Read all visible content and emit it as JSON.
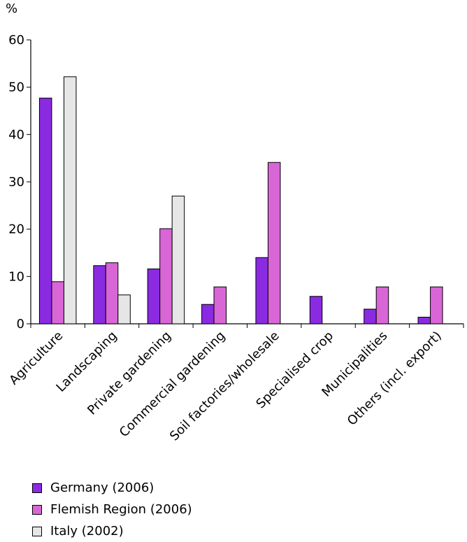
{
  "chart_data": {
    "type": "bar",
    "ylabel": "%",
    "ylim": [
      0,
      60
    ],
    "yticks": [
      0,
      10,
      20,
      30,
      40,
      50,
      60
    ],
    "categories": [
      "Agriculture",
      "Landscaping",
      "Private gardening",
      "Commercial gardening",
      "Soil factories/wholesale",
      "Specialised crop",
      "Municipalities",
      "Others (incl. export)"
    ],
    "series": [
      {
        "name": "Germany (2006)",
        "color": "#8a2be2",
        "values": [
          47.7,
          12.3,
          11.6,
          4.1,
          14.0,
          5.8,
          3.1,
          1.4
        ]
      },
      {
        "name": "Flemish Region (2006)",
        "color": "#d966d6",
        "values": [
          8.9,
          12.9,
          20.1,
          7.8,
          34.1,
          null,
          7.8,
          7.8
        ]
      },
      {
        "name": "Italy (2002)",
        "color": "#e6e6e6",
        "values": [
          52.2,
          6.1,
          27.0,
          null,
          null,
          null,
          null,
          null
        ]
      }
    ],
    "legend_position": "bottom-left",
    "grid": false
  }
}
